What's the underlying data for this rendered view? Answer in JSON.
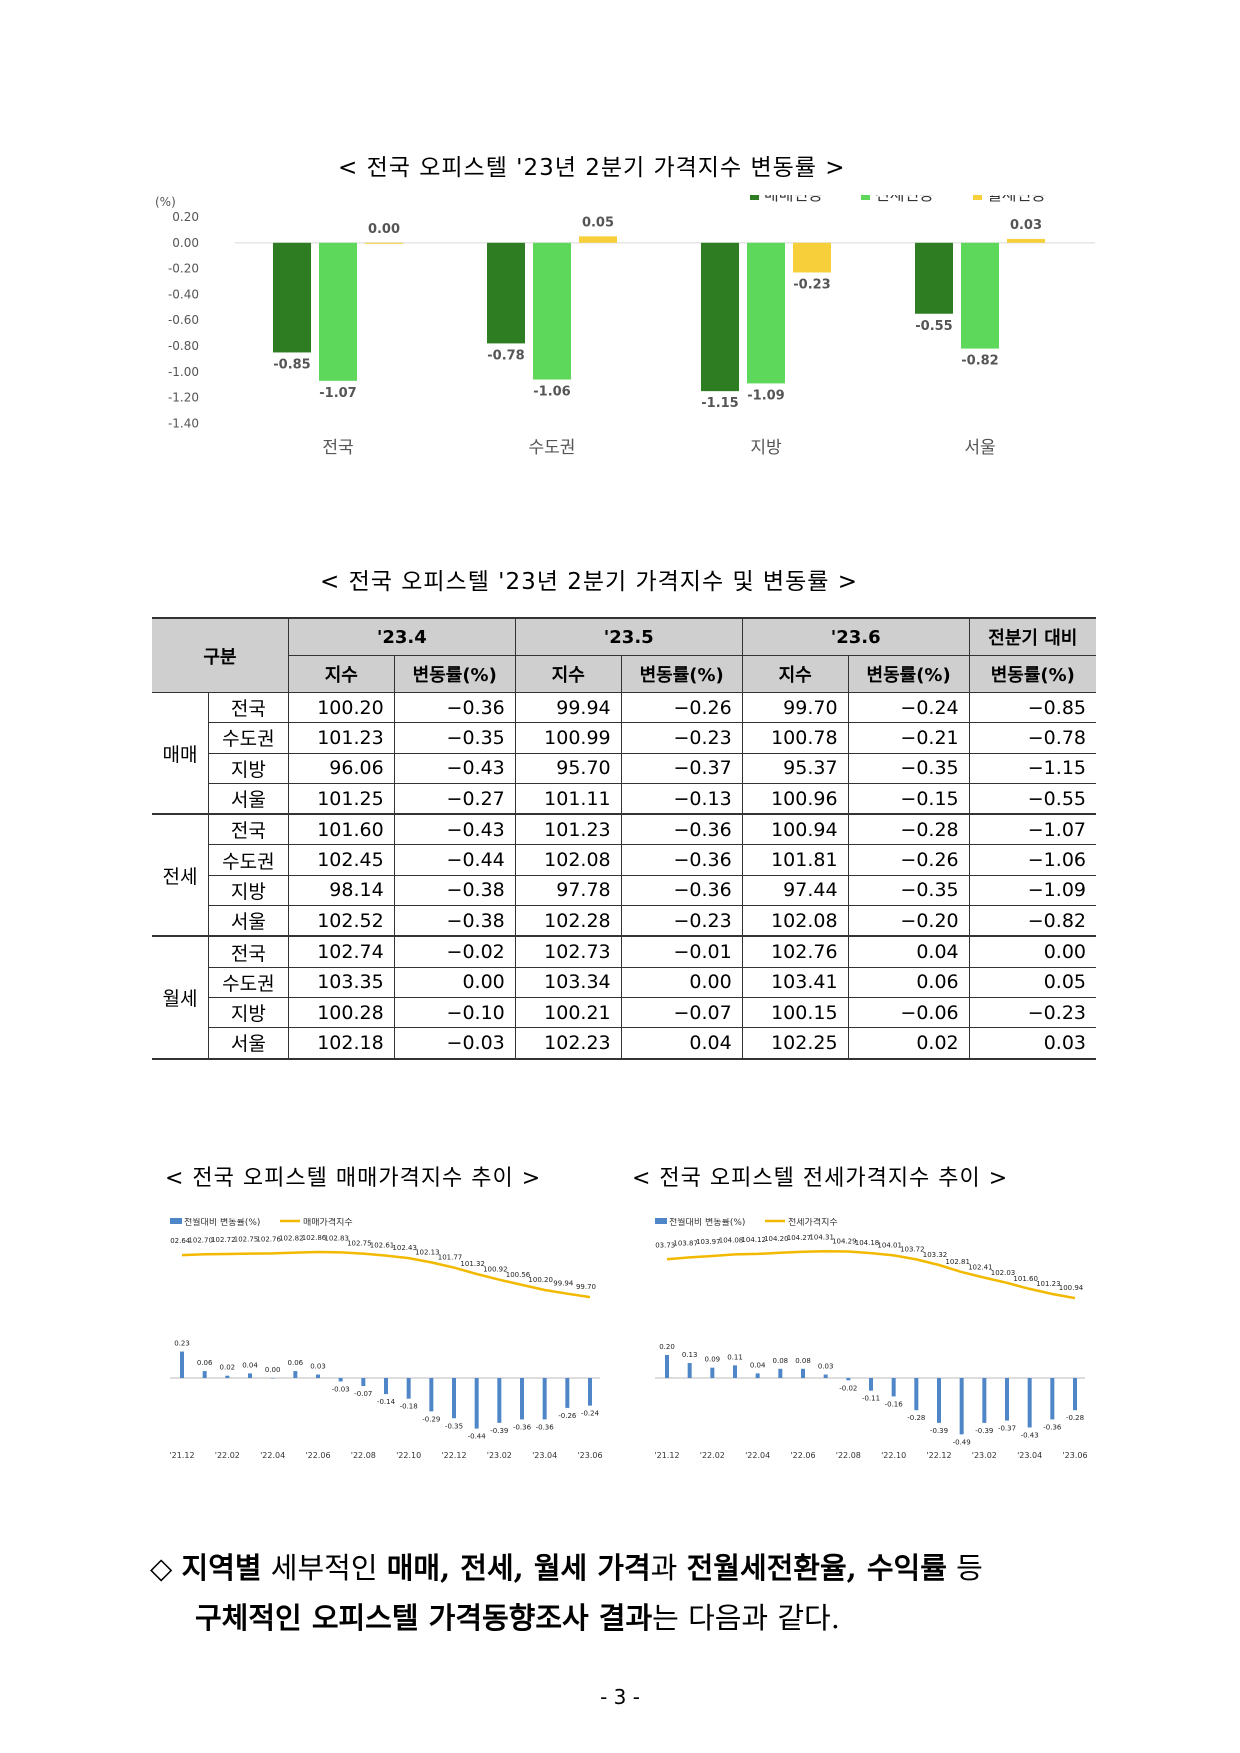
{
  "chart1": {
    "title": "< 전국 오피스텔 '23년 2분기 가격지수 변동률 >",
    "unit": "(%)",
    "chart_data": {
      "type": "bar",
      "categories": [
        "전국",
        "수도권",
        "지방",
        "서울"
      ],
      "series": [
        {
          "name": "매매변동",
          "color": "#2e7d22",
          "values": [
            -0.85,
            -0.78,
            -1.15,
            -0.55
          ]
        },
        {
          "name": "전세변동",
          "color": "#5dd85a",
          "values": [
            -1.07,
            -1.06,
            -1.09,
            -0.82
          ]
        },
        {
          "name": "월세변동",
          "color": "#f7cf3b",
          "values": [
            0.0,
            0.05,
            -0.23,
            0.03
          ]
        }
      ],
      "ylim": [
        -1.4,
        0.2
      ],
      "yticks": [
        "0.20",
        "0.00",
        "-0.20",
        "-0.40",
        "-0.60",
        "-0.80",
        "-1.00",
        "-1.20",
        "-1.40"
      ],
      "labels": [
        [
          "-0.85",
          "-1.07",
          "0.00"
        ],
        [
          "-0.78",
          "-1.06",
          "0.05"
        ],
        [
          "-1.15",
          "-1.09",
          "-0.23"
        ],
        [
          "-0.55",
          "-0.82",
          "0.03"
        ]
      ]
    }
  },
  "table": {
    "title": "< 전국 오피스텔 '23년 2분기 가격지수 및 변동률 >",
    "col_group": "구분",
    "months": [
      "'23.4",
      "'23.5",
      "'23.6"
    ],
    "index_label": "지수",
    "rate_label": "변동률(%)",
    "prev_q_label_1": "전분기 대비",
    "prev_q_label_2": "변동률(%)",
    "groups": [
      {
        "name": "매매",
        "rows": [
          {
            "region": "전국",
            "v": [
              "100.20",
              "−0.36",
              "99.94",
              "−0.26",
              "99.70",
              "−0.24",
              "−0.85"
            ]
          },
          {
            "region": "수도권",
            "v": [
              "101.23",
              "−0.35",
              "100.99",
              "−0.23",
              "100.78",
              "−0.21",
              "−0.78"
            ]
          },
          {
            "region": "지방",
            "v": [
              "96.06",
              "−0.43",
              "95.70",
              "−0.37",
              "95.37",
              "−0.35",
              "−1.15"
            ]
          },
          {
            "region": "서울",
            "v": [
              "101.25",
              "−0.27",
              "101.11",
              "−0.13",
              "100.96",
              "−0.15",
              "−0.55"
            ]
          }
        ]
      },
      {
        "name": "전세",
        "rows": [
          {
            "region": "전국",
            "v": [
              "101.60",
              "−0.43",
              "101.23",
              "−0.36",
              "100.94",
              "−0.28",
              "−1.07"
            ]
          },
          {
            "region": "수도권",
            "v": [
              "102.45",
              "−0.44",
              "102.08",
              "−0.36",
              "101.81",
              "−0.26",
              "−1.06"
            ]
          },
          {
            "region": "지방",
            "v": [
              "98.14",
              "−0.38",
              "97.78",
              "−0.36",
              "97.44",
              "−0.35",
              "−1.09"
            ]
          },
          {
            "region": "서울",
            "v": [
              "102.52",
              "−0.38",
              "102.28",
              "−0.23",
              "102.08",
              "−0.20",
              "−0.82"
            ]
          }
        ]
      },
      {
        "name": "월세",
        "rows": [
          {
            "region": "전국",
            "v": [
              "102.74",
              "−0.02",
              "102.73",
              "−0.01",
              "102.76",
              "0.04",
              "0.00"
            ]
          },
          {
            "region": "수도권",
            "v": [
              "103.35",
              "0.00",
              "103.34",
              "0.00",
              "103.41",
              "0.06",
              "0.05"
            ]
          },
          {
            "region": "지방",
            "v": [
              "100.28",
              "−0.10",
              "100.21",
              "−0.07",
              "100.15",
              "−0.06",
              "−0.23"
            ]
          },
          {
            "region": "서울",
            "v": [
              "102.18",
              "−0.03",
              "102.23",
              "0.04",
              "102.25",
              "0.02",
              "0.03"
            ]
          }
        ]
      }
    ]
  },
  "chart2": {
    "title": "< 전국 오피스텔 매매가격지수 추이 >",
    "legend_bar": "전월대비 변동률(%)",
    "legend_line": "매매가격지수",
    "chart_data": {
      "type": "bar+line",
      "index": [
        "102.64",
        "102.70",
        "102.72",
        "102.75",
        "102.76",
        "102.82",
        "102.86",
        "102.83",
        "102.75",
        "102.61",
        "102.43",
        "102.13",
        "101.77",
        "101.32",
        "100.92",
        "100.56",
        "100.20",
        "99.94",
        "99.70"
      ],
      "change": [
        "0.23",
        "0.06",
        "0.02",
        "0.04",
        "0.00",
        "0.06",
        "0.03",
        "-0.03",
        "-0.07",
        "-0.14",
        "-0.18",
        "-0.29",
        "-0.35",
        "-0.44",
        "-0.39",
        "-0.36",
        "-0.36",
        "-0.26",
        "-0.24"
      ],
      "xticks": [
        "'21.12",
        "'22.02",
        "'22.04",
        "'22.06",
        "'22.08",
        "'22.10",
        "'22.12",
        "'23.02",
        "'23.04",
        "'23.06"
      ]
    }
  },
  "chart3": {
    "title": "< 전국 오피스텔 전세가격지수 추이 >",
    "legend_bar": "전월대비 변동률(%)",
    "legend_line": "전세가격지수",
    "chart_data": {
      "type": "bar+line",
      "index": [
        "103.73",
        "103.87",
        "103.97",
        "104.08",
        "104.12",
        "104.20",
        "104.27",
        "104.31",
        "104.29",
        "104.18",
        "104.01",
        "103.72",
        "103.32",
        "102.81",
        "102.41",
        "102.03",
        "101.60",
        "101.23",
        "100.94"
      ],
      "change": [
        "0.20",
        "0.13",
        "0.09",
        "0.11",
        "0.04",
        "0.08",
        "0.08",
        "0.03",
        "-0.02",
        "-0.11",
        "-0.16",
        "-0.28",
        "-0.39",
        "-0.49",
        "-0.39",
        "-0.37",
        "-0.43",
        "-0.36",
        "-0.28"
      ],
      "xticks": [
        "'21.12",
        "'22.02",
        "'22.04",
        "'22.06",
        "'22.08",
        "'22.10",
        "'22.12",
        "'23.02",
        "'23.04",
        "'23.06"
      ]
    }
  },
  "summary": {
    "bullet": "◇",
    "p1": "지역별",
    "p2": " 세부적인 ",
    "p3": "매매, 전세, 월세 가격",
    "p4": "과 ",
    "p5": "전월세전환율, 수익률",
    "p6": " 등",
    "p7": "구체적인 오피스텔 가격동향조사 결과",
    "p8": "는 다음과 같다."
  },
  "page_number": "- 3 -"
}
